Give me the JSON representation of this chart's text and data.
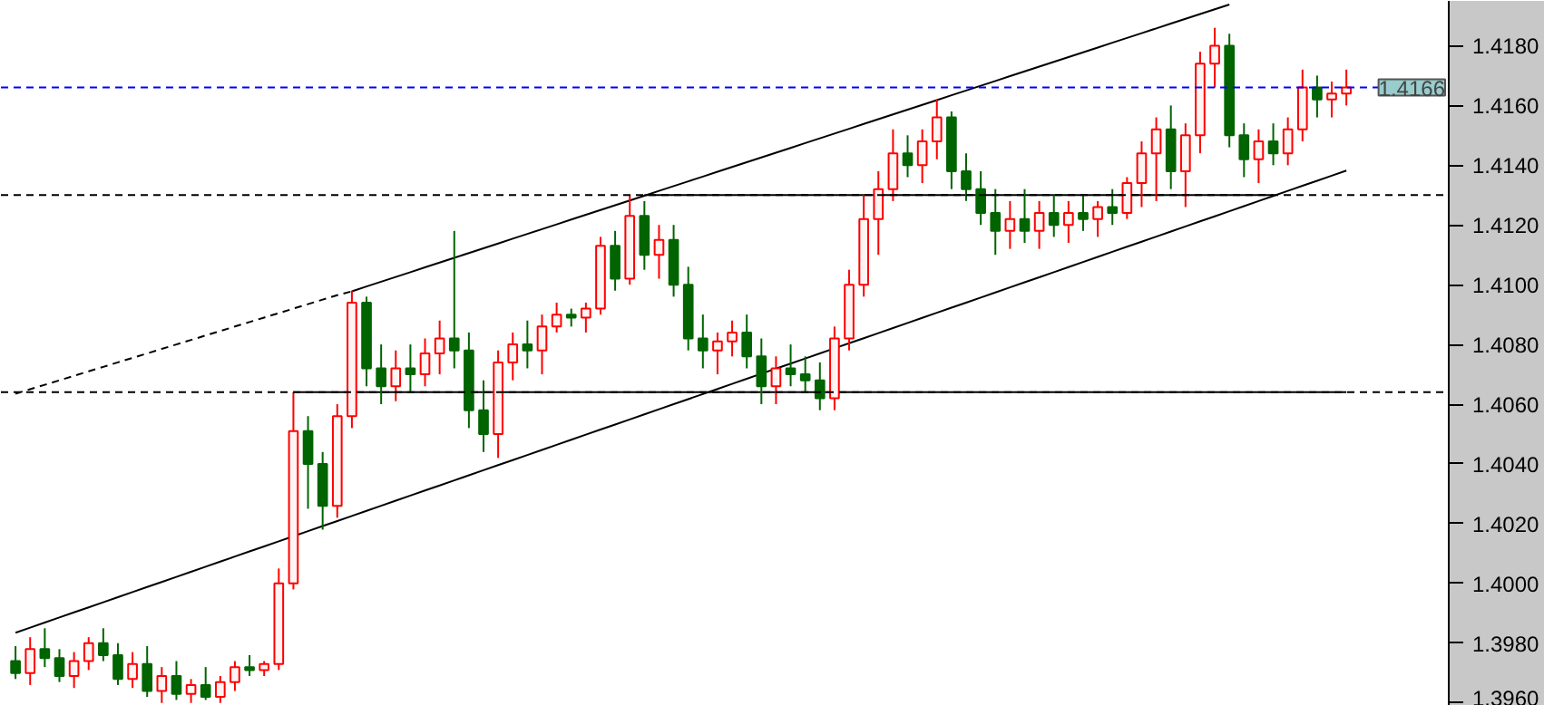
{
  "chart_data": {
    "type": "candlestick",
    "categories": [
      null,
      null,
      null,
      null,
      null,
      null,
      null,
      null,
      null,
      null,
      null,
      null,
      null,
      null,
      null,
      null,
      null,
      null,
      null,
      null,
      null,
      null,
      null,
      null,
      null,
      null,
      null,
      null,
      null,
      null,
      null,
      null,
      null,
      null,
      null,
      null,
      null,
      null,
      null,
      null,
      null,
      null,
      null,
      null,
      null,
      null,
      null,
      null,
      null,
      null,
      null,
      null,
      null,
      null,
      null,
      null,
      null,
      null,
      null,
      null,
      null,
      null,
      null,
      null,
      null,
      null,
      null,
      null,
      null,
      null,
      null,
      null,
      null,
      null,
      null,
      null,
      null,
      null,
      null,
      null,
      null,
      null,
      null,
      null,
      null,
      null,
      null,
      null,
      null,
      null,
      null,
      null
    ],
    "ohlc": [
      [
        1.3974,
        1.3979,
        1.3968,
        1.397
      ],
      [
        1.397,
        1.3982,
        1.3966,
        1.3978
      ],
      [
        1.3978,
        1.3985,
        1.3972,
        1.3975
      ],
      [
        1.3975,
        1.3978,
        1.3967,
        1.3969
      ],
      [
        1.3969,
        1.3977,
        1.3965,
        1.3974
      ],
      [
        1.3974,
        1.3982,
        1.3971,
        1.398
      ],
      [
        1.398,
        1.3985,
        1.3974,
        1.3976
      ],
      [
        1.3976,
        1.398,
        1.3966,
        1.3968
      ],
      [
        1.3968,
        1.3977,
        1.3965,
        1.3973
      ],
      [
        1.3973,
        1.3979,
        1.3962,
        1.3964
      ],
      [
        1.3964,
        1.3972,
        1.396,
        1.3969
      ],
      [
        1.3969,
        1.3974,
        1.3961,
        1.3963
      ],
      [
        1.3963,
        1.3968,
        1.396,
        1.3966
      ],
      [
        1.3966,
        1.3972,
        1.3961,
        1.3962
      ],
      [
        1.3962,
        1.3969,
        1.396,
        1.3967
      ],
      [
        1.3967,
        1.3974,
        1.3964,
        1.3972
      ],
      [
        1.3972,
        1.3976,
        1.3969,
        1.3971
      ],
      [
        1.3971,
        1.3974,
        1.3969,
        1.3973
      ],
      [
        1.3973,
        1.4005,
        1.3971,
        1.4
      ],
      [
        1.4,
        1.4064,
        1.3998,
        1.4051
      ],
      [
        1.4051,
        1.4056,
        1.4025,
        1.404
      ],
      [
        1.404,
        1.4044,
        1.4018,
        1.4026
      ],
      [
        1.4026,
        1.406,
        1.4022,
        1.4056
      ],
      [
        1.4056,
        1.4098,
        1.4052,
        1.4094
      ],
      [
        1.4094,
        1.4096,
        1.4066,
        1.4072
      ],
      [
        1.4072,
        1.408,
        1.406,
        1.4066
      ],
      [
        1.4066,
        1.4078,
        1.4061,
        1.4072
      ],
      [
        1.4072,
        1.408,
        1.4064,
        1.407
      ],
      [
        1.407,
        1.4082,
        1.4066,
        1.4077
      ],
      [
        1.4077,
        1.4088,
        1.407,
        1.4082
      ],
      [
        1.4082,
        1.4118,
        1.4072,
        1.4078
      ],
      [
        1.4078,
        1.4084,
        1.4052,
        1.4058
      ],
      [
        1.4058,
        1.4068,
        1.4044,
        1.405
      ],
      [
        1.405,
        1.4078,
        1.4042,
        1.4074
      ],
      [
        1.4074,
        1.4084,
        1.4068,
        1.408
      ],
      [
        1.408,
        1.4088,
        1.4072,
        1.4078
      ],
      [
        1.4078,
        1.409,
        1.407,
        1.4086
      ],
      [
        1.4086,
        1.4094,
        1.4084,
        1.409
      ],
      [
        1.409,
        1.4092,
        1.4086,
        1.4089
      ],
      [
        1.4089,
        1.4094,
        1.4084,
        1.4092
      ],
      [
        1.4092,
        1.4116,
        1.409,
        1.4113
      ],
      [
        1.4113,
        1.4118,
        1.4098,
        1.4102
      ],
      [
        1.4102,
        1.413,
        1.41,
        1.4123
      ],
      [
        1.4123,
        1.4128,
        1.4105,
        1.411
      ],
      [
        1.411,
        1.412,
        1.4102,
        1.4115
      ],
      [
        1.4115,
        1.412,
        1.4096,
        1.41
      ],
      [
        1.41,
        1.4106,
        1.4078,
        1.4082
      ],
      [
        1.4082,
        1.409,
        1.4072,
        1.4078
      ],
      [
        1.4078,
        1.4084,
        1.407,
        1.4081
      ],
      [
        1.4081,
        1.4088,
        1.4076,
        1.4084
      ],
      [
        1.4084,
        1.409,
        1.4072,
        1.4076
      ],
      [
        1.4076,
        1.4082,
        1.406,
        1.4066
      ],
      [
        1.4066,
        1.4076,
        1.406,
        1.4072
      ],
      [
        1.4072,
        1.408,
        1.4066,
        1.407
      ],
      [
        1.407,
        1.4076,
        1.4064,
        1.4068
      ],
      [
        1.4068,
        1.4074,
        1.4058,
        1.4062
      ],
      [
        1.4062,
        1.4086,
        1.4058,
        1.4082
      ],
      [
        1.4082,
        1.4105,
        1.4078,
        1.41
      ],
      [
        1.41,
        1.413,
        1.4096,
        1.4122
      ],
      [
        1.4122,
        1.4138,
        1.411,
        1.4132
      ],
      [
        1.4132,
        1.4152,
        1.4128,
        1.4144
      ],
      [
        1.4144,
        1.415,
        1.4136,
        1.414
      ],
      [
        1.414,
        1.4152,
        1.4134,
        1.4148
      ],
      [
        1.4148,
        1.4162,
        1.4142,
        1.4156
      ],
      [
        1.4156,
        1.4158,
        1.4132,
        1.4138
      ],
      [
        1.4138,
        1.4144,
        1.4128,
        1.4132
      ],
      [
        1.4132,
        1.4138,
        1.412,
        1.4124
      ],
      [
        1.4124,
        1.4132,
        1.411,
        1.4118
      ],
      [
        1.4118,
        1.4128,
        1.4112,
        1.4122
      ],
      [
        1.4122,
        1.4132,
        1.4114,
        1.4118
      ],
      [
        1.4118,
        1.4128,
        1.4112,
        1.4124
      ],
      [
        1.4124,
        1.413,
        1.4116,
        1.412
      ],
      [
        1.412,
        1.4128,
        1.4114,
        1.4124
      ],
      [
        1.4124,
        1.413,
        1.4118,
        1.4122
      ],
      [
        1.4122,
        1.4128,
        1.4116,
        1.4126
      ],
      [
        1.4126,
        1.4132,
        1.412,
        1.4124
      ],
      [
        1.4124,
        1.4136,
        1.4122,
        1.4134
      ],
      [
        1.4134,
        1.4148,
        1.4126,
        1.4144
      ],
      [
        1.4144,
        1.4156,
        1.4128,
        1.4152
      ],
      [
        1.4152,
        1.416,
        1.4132,
        1.4138
      ],
      [
        1.4138,
        1.4154,
        1.4126,
        1.415
      ],
      [
        1.415,
        1.4178,
        1.4144,
        1.4174
      ],
      [
        1.4174,
        1.4186,
        1.4166,
        1.418
      ],
      [
        1.418,
        1.4184,
        1.4146,
        1.415
      ],
      [
        1.415,
        1.4154,
        1.4136,
        1.4142
      ],
      [
        1.4142,
        1.4152,
        1.4134,
        1.4148
      ],
      [
        1.4148,
        1.4154,
        1.414,
        1.4144
      ],
      [
        1.4144,
        1.4156,
        1.414,
        1.4152
      ],
      [
        1.4152,
        1.4172,
        1.4148,
        1.4166
      ],
      [
        1.4166,
        1.417,
        1.4156,
        1.4162
      ],
      [
        1.4162,
        1.4168,
        1.4156,
        1.4164
      ],
      [
        1.4164,
        1.4172,
        1.416,
        1.4166
      ]
    ],
    "colors": [
      "#006400",
      "#ff0000",
      "#006400",
      "#006400",
      "#ff0000",
      "#ff0000",
      "#006400",
      "#006400",
      "#ff0000",
      "#006400",
      "#ff0000",
      "#006400",
      "#ff0000",
      "#006400",
      "#ff0000",
      "#ff0000",
      "#006400",
      "#ff0000",
      "#ff0000",
      "#ff0000",
      "#006400",
      "#006400",
      "#ff0000",
      "#ff0000",
      "#006400",
      "#006400",
      "#ff0000",
      "#006400",
      "#ff0000",
      "#ff0000",
      "#006400",
      "#006400",
      "#006400",
      "#ff0000",
      "#ff0000",
      "#006400",
      "#ff0000",
      "#ff0000",
      "#006400",
      "#ff0000",
      "#ff0000",
      "#006400",
      "#ff0000",
      "#006400",
      "#ff0000",
      "#006400",
      "#006400",
      "#006400",
      "#ff0000",
      "#ff0000",
      "#006400",
      "#006400",
      "#ff0000",
      "#006400",
      "#006400",
      "#006400",
      "#ff0000",
      "#ff0000",
      "#ff0000",
      "#ff0000",
      "#ff0000",
      "#006400",
      "#ff0000",
      "#ff0000",
      "#006400",
      "#006400",
      "#006400",
      "#006400",
      "#ff0000",
      "#006400",
      "#ff0000",
      "#006400",
      "#ff0000",
      "#006400",
      "#ff0000",
      "#006400",
      "#ff0000",
      "#ff0000",
      "#ff0000",
      "#006400",
      "#ff0000",
      "#ff0000",
      "#ff0000",
      "#006400",
      "#006400",
      "#ff0000",
      "#006400",
      "#ff0000",
      "#ff0000",
      "#006400",
      "#ff0000",
      "#ff0000"
    ],
    "series": [
      {
        "type": "line",
        "color": "#000000",
        "line_style": "dashed",
        "values": [
          1.40635,
          1.4065,
          1.40665,
          1.4068,
          1.40695,
          1.4071,
          1.40725,
          1.4074,
          1.40755,
          1.4077,
          1.40785,
          1.408,
          1.40815,
          1.4083,
          1.40845,
          1.4086,
          1.40875,
          1.4089,
          1.40905,
          1.4092,
          1.40935,
          1.4095,
          1.40965,
          1.40978,
          null,
          null,
          null,
          null,
          null,
          null,
          null,
          null,
          null,
          null,
          null,
          null,
          null,
          null,
          null,
          null,
          null,
          null,
          null,
          null,
          null,
          null,
          null,
          null,
          null,
          null,
          null,
          null,
          null,
          null,
          null,
          null,
          null,
          null,
          null,
          null,
          null,
          null,
          null,
          null,
          null,
          null,
          null,
          null,
          null,
          null,
          null,
          null,
          null,
          null,
          null,
          null,
          null,
          null,
          null,
          null,
          null,
          null,
          null,
          null,
          null,
          null,
          null,
          null,
          null,
          null,
          null,
          null
        ]
      },
      {
        "type": "line",
        "color": "#000000",
        "line_style": "solid",
        "values": [
          null,
          null,
          null,
          null,
          null,
          null,
          null,
          null,
          null,
          null,
          null,
          null,
          null,
          null,
          null,
          null,
          null,
          null,
          null,
          null,
          null,
          null,
          null,
          1.40978,
          1.40994,
          1.4101,
          1.41026,
          1.41042,
          1.41058,
          1.41074,
          1.4109,
          1.41106,
          1.41122,
          1.41138,
          1.41154,
          1.4117,
          1.41186,
          1.41202,
          1.41218,
          1.41234,
          1.4125,
          1.41266,
          1.41282,
          1.41298,
          1.41314,
          1.4133,
          1.41346,
          1.41362,
          1.41378,
          1.41394,
          1.4141,
          1.41426,
          1.41442,
          1.41458,
          1.41474,
          1.4149,
          1.41506,
          1.41522,
          1.41538,
          1.41554,
          1.4157,
          1.41586,
          1.41602,
          1.41618,
          1.41634,
          1.4165,
          1.41666,
          1.41682,
          1.41698,
          1.41714,
          1.4173,
          1.41746,
          1.41762,
          1.41778,
          1.41794,
          1.4181,
          1.41826,
          1.41842,
          1.41858,
          1.41874,
          1.4189,
          1.41906,
          1.41922,
          1.41938,
          null,
          null,
          null,
          null,
          null,
          null,
          null,
          null
        ]
      },
      {
        "type": "line",
        "color": "#000000",
        "line_style": "solid",
        "values": [
          1.39835,
          1.39852,
          1.39869,
          1.39886,
          1.39903,
          1.3992,
          1.39937,
          1.39954,
          1.39971,
          1.39988,
          1.40005,
          1.40022,
          1.40039,
          1.40056,
          1.40073,
          1.4009,
          1.40107,
          1.40124,
          1.40141,
          1.40158,
          1.40175,
          1.40192,
          1.40209,
          1.40226,
          1.40243,
          1.4026,
          1.40277,
          1.40294,
          1.40311,
          1.40328,
          1.40345,
          1.40362,
          1.40379,
          1.40396,
          1.40413,
          1.4043,
          1.40447,
          1.40464,
          1.40481,
          1.40498,
          1.40515,
          1.40532,
          1.40549,
          1.40566,
          1.40583,
          1.406,
          1.40617,
          1.40634,
          1.40651,
          1.40668,
          1.40685,
          1.40702,
          1.40719,
          1.40736,
          1.40753,
          1.4077,
          1.40787,
          1.40804,
          1.40821,
          1.40838,
          1.40855,
          1.40872,
          1.40889,
          1.40906,
          1.40923,
          1.4094,
          1.40957,
          1.40974,
          1.40991,
          1.41008,
          1.41025,
          1.41042,
          1.41059,
          1.41076,
          1.41093,
          1.4111,
          1.41127,
          1.41144,
          1.41161,
          1.41178,
          1.41195,
          1.41212,
          1.41229,
          1.41246,
          1.41263,
          1.4128,
          1.41297,
          1.41314,
          1.41331,
          1.41348,
          1.41365,
          1.41382
        ]
      },
      {
        "type": "line",
        "color": "#000000",
        "line_style": "solid",
        "values": [
          null,
          null,
          null,
          null,
          null,
          null,
          null,
          null,
          null,
          null,
          null,
          null,
          null,
          null,
          null,
          null,
          null,
          null,
          null,
          null,
          null,
          null,
          null,
          null,
          null,
          null,
          null,
          null,
          null,
          null,
          null,
          null,
          null,
          null,
          null,
          null,
          null,
          null,
          null,
          null,
          null,
          null,
          null,
          1.413,
          1.413,
          1.413,
          1.413,
          1.413,
          1.413,
          1.413,
          1.413,
          1.413,
          1.413,
          1.413,
          1.413,
          1.413,
          1.413,
          1.413,
          1.413,
          1.413,
          1.413,
          1.413,
          1.413,
          1.413,
          1.413,
          1.413,
          1.413,
          1.413,
          1.413,
          1.413,
          1.413,
          1.413,
          1.413,
          1.413,
          1.413,
          1.413,
          1.413,
          1.413,
          1.413,
          1.413,
          1.413,
          1.413,
          1.413,
          1.413,
          1.413,
          1.413,
          1.413,
          null,
          null,
          null,
          null,
          null
        ]
      },
      {
        "type": "line",
        "color": "#000000",
        "line_style": "solid",
        "values": [
          null,
          null,
          null,
          null,
          null,
          null,
          null,
          null,
          null,
          null,
          null,
          null,
          null,
          null,
          null,
          null,
          null,
          null,
          null,
          1.4064,
          1.4064,
          1.4064,
          1.4064,
          1.4064,
          1.4064,
          1.4064,
          1.4064,
          1.4064,
          1.4064,
          1.4064,
          1.4064,
          1.4064,
          1.4064,
          1.4064,
          1.4064,
          1.4064,
          1.4064,
          1.4064,
          1.4064,
          1.4064,
          1.4064,
          1.4064,
          1.4064,
          1.4064,
          1.4064,
          1.4064,
          1.4064,
          1.4064,
          1.4064,
          1.4064,
          1.4064,
          1.4064,
          1.4064,
          1.4064,
          1.4064,
          1.4064,
          1.4064,
          1.4064,
          1.4064,
          1.4064,
          1.4064,
          1.4064,
          1.4064,
          1.4064,
          1.4064,
          1.4064,
          1.4064,
          1.4064,
          1.4064,
          1.4064,
          1.4064,
          1.4064,
          1.4064,
          1.4064,
          1.4064,
          1.4064,
          1.4064,
          1.4064,
          1.4064,
          1.4064,
          1.4064,
          1.4064,
          1.4064,
          1.4064,
          1.4064,
          1.4064,
          1.4064,
          1.4064,
          1.4064,
          1.4064,
          1.4064,
          1.4064
        ]
      }
    ],
    "ref_lines": [
      {
        "axis": "y",
        "value": 1.413,
        "color": "#000000",
        "line_style": "dashed"
      },
      {
        "axis": "y",
        "value": 1.4064,
        "color": "#000000",
        "line_style": "dashed"
      },
      {
        "axis": "y",
        "value": 1.4166,
        "color": "#0000ff",
        "line_style": "dashed",
        "label": "1.4166"
      }
    ],
    "ylim": [
      1.3959,
      1.4195
    ],
    "yticks": [
      {
        "value": 1.396,
        "label": "1.3960"
      },
      {
        "value": 1.398,
        "label": "1.3980"
      },
      {
        "value": 1.4,
        "label": "1.4000"
      },
      {
        "value": 1.402,
        "label": "1.4020"
      },
      {
        "value": 1.404,
        "label": "1.4040"
      },
      {
        "value": 1.406,
        "label": "1.4060"
      },
      {
        "value": 1.408,
        "label": "1.4080"
      },
      {
        "value": 1.41,
        "label": "1.4100"
      },
      {
        "value": 1.412,
        "label": "1.4120"
      },
      {
        "value": 1.414,
        "label": "1.4140"
      },
      {
        "value": 1.416,
        "label": "1.4160"
      },
      {
        "value": 1.418,
        "label": "1.4180"
      }
    ],
    "tick_labels": "y",
    "grid": false
  }
}
